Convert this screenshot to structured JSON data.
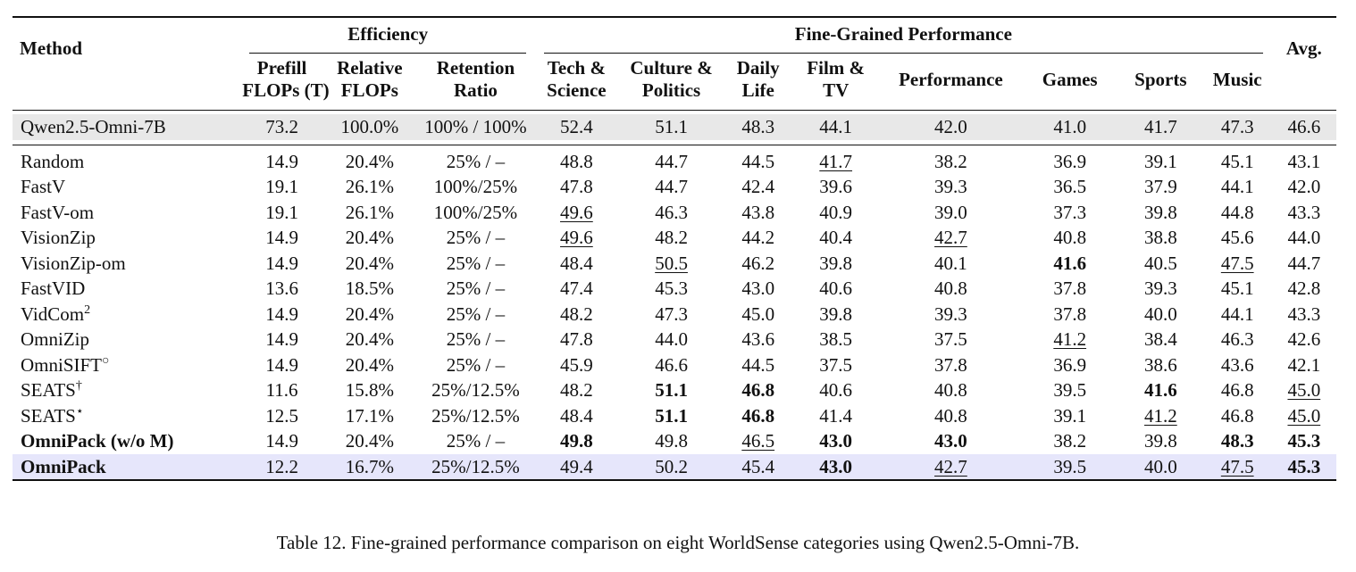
{
  "table": {
    "header": {
      "method": "Method",
      "efficiency": "Efficiency",
      "fine_grained": "Fine-Grained Performance",
      "avg": "Avg.",
      "columns": [
        [
          "Prefill",
          "FLOPs (T)"
        ],
        [
          "Relative",
          "FLOPs"
        ],
        [
          "Retention",
          "Ratio"
        ],
        [
          "Tech &",
          "Science"
        ],
        [
          "Culture &",
          "Politics"
        ],
        [
          "Daily",
          "Life"
        ],
        [
          "Film &",
          "TV"
        ],
        [
          "Performance",
          ""
        ],
        [
          "Games",
          ""
        ],
        [
          "Sports",
          ""
        ],
        [
          "Music",
          ""
        ]
      ]
    },
    "rows": [
      {
        "method": "Qwen2.5-Omni-7B",
        "sup": "",
        "bold_method": false,
        "style": "base",
        "cells": [
          "73.2",
          "100.0%",
          "100% / 100%",
          "52.4",
          "51.1",
          "48.3",
          "44.1",
          "42.0",
          "41.0",
          "41.7",
          "47.3",
          "46.6"
        ],
        "fmt": [
          "",
          "",
          "",
          "",
          "",
          "",
          "",
          "",
          "",
          "",
          "",
          ""
        ]
      },
      {
        "method": "Random",
        "sup": "",
        "bold_method": false,
        "style": "",
        "cells": [
          "14.9",
          "20.4%",
          "25% / –",
          "48.8",
          "44.7",
          "44.5",
          "41.7",
          "38.2",
          "36.9",
          "39.1",
          "45.1",
          "43.1"
        ],
        "fmt": [
          "",
          "",
          "",
          "",
          "",
          "",
          "u",
          "",
          "",
          "",
          "",
          ""
        ]
      },
      {
        "method": "FastV",
        "sup": "",
        "bold_method": false,
        "style": "",
        "cells": [
          "19.1",
          "26.1%",
          "100%/25%",
          "47.8",
          "44.7",
          "42.4",
          "39.6",
          "39.3",
          "36.5",
          "37.9",
          "44.1",
          "42.0"
        ],
        "fmt": [
          "",
          "",
          "",
          "",
          "",
          "",
          "",
          "",
          "",
          "",
          "",
          ""
        ]
      },
      {
        "method": "FastV-om",
        "sup": "",
        "bold_method": false,
        "style": "",
        "cells": [
          "19.1",
          "26.1%",
          "100%/25%",
          "49.6",
          "46.3",
          "43.8",
          "40.9",
          "39.0",
          "37.3",
          "39.8",
          "44.8",
          "43.3"
        ],
        "fmt": [
          "",
          "",
          "",
          "u",
          "",
          "",
          "",
          "",
          "",
          "",
          "",
          ""
        ]
      },
      {
        "method": "VisionZip",
        "sup": "",
        "bold_method": false,
        "style": "",
        "cells": [
          "14.9",
          "20.4%",
          "25% / –",
          "49.6",
          "48.2",
          "44.2",
          "40.4",
          "42.7",
          "40.8",
          "38.8",
          "45.6",
          "44.0"
        ],
        "fmt": [
          "",
          "",
          "",
          "u",
          "",
          "",
          "",
          "u",
          "",
          "",
          "",
          ""
        ]
      },
      {
        "method": "VisionZip-om",
        "sup": "",
        "bold_method": false,
        "style": "",
        "cells": [
          "14.9",
          "20.4%",
          "25% / –",
          "48.4",
          "50.5",
          "46.2",
          "39.8",
          "40.1",
          "41.6",
          "40.5",
          "47.5",
          "44.7"
        ],
        "fmt": [
          "",
          "",
          "",
          "",
          "u",
          "",
          "",
          "",
          "b",
          "",
          "u",
          ""
        ]
      },
      {
        "method": "FastVID",
        "sup": "",
        "bold_method": false,
        "style": "",
        "cells": [
          "13.6",
          "18.5%",
          "25% / –",
          "47.4",
          "45.3",
          "43.0",
          "40.6",
          "40.8",
          "37.8",
          "39.3",
          "45.1",
          "42.8"
        ],
        "fmt": [
          "",
          "",
          "",
          "",
          "",
          "",
          "",
          "",
          "",
          "",
          "",
          ""
        ]
      },
      {
        "method": "VidCom",
        "sup": "2",
        "bold_method": false,
        "style": "",
        "cells": [
          "14.9",
          "20.4%",
          "25% / –",
          "48.2",
          "47.3",
          "45.0",
          "39.8",
          "39.3",
          "37.8",
          "40.0",
          "44.1",
          "43.3"
        ],
        "fmt": [
          "",
          "",
          "",
          "",
          "",
          "",
          "",
          "",
          "",
          "",
          "",
          ""
        ]
      },
      {
        "method": "OmniZip",
        "sup": "",
        "bold_method": false,
        "style": "",
        "cells": [
          "14.9",
          "20.4%",
          "25% / –",
          "47.8",
          "44.0",
          "43.6",
          "38.5",
          "37.5",
          "41.2",
          "38.4",
          "46.3",
          "42.6"
        ],
        "fmt": [
          "",
          "",
          "",
          "",
          "",
          "",
          "",
          "",
          "u",
          "",
          "",
          ""
        ]
      },
      {
        "method": "OmniSIFT",
        "sup": "○",
        "bold_method": false,
        "style": "",
        "cells": [
          "14.9",
          "20.4%",
          "25% / –",
          "45.9",
          "46.6",
          "44.5",
          "37.5",
          "37.8",
          "36.9",
          "38.6",
          "43.6",
          "42.1"
        ],
        "fmt": [
          "",
          "",
          "",
          "",
          "",
          "",
          "",
          "",
          "",
          "",
          "",
          ""
        ]
      },
      {
        "method": "SEATS",
        "sup": "†",
        "bold_method": false,
        "style": "",
        "cells": [
          "11.6",
          "15.8%",
          "25%/12.5%",
          "48.2",
          "51.1",
          "46.8",
          "40.6",
          "40.8",
          "39.5",
          "41.6",
          "46.8",
          "45.0"
        ],
        "fmt": [
          "",
          "",
          "",
          "",
          "b",
          "b",
          "",
          "",
          "",
          "b",
          "",
          "u"
        ]
      },
      {
        "method": "SEATS",
        "sup": "⋆",
        "bold_method": false,
        "style": "",
        "cells": [
          "12.5",
          "17.1%",
          "25%/12.5%",
          "48.4",
          "51.1",
          "46.8",
          "41.4",
          "40.8",
          "39.1",
          "41.2",
          "46.8",
          "45.0"
        ],
        "fmt": [
          "",
          "",
          "",
          "",
          "b",
          "b",
          "",
          "",
          "",
          "u",
          "",
          "u"
        ]
      },
      {
        "method": "OmniPack (w/o M)",
        "sup": "",
        "bold_method": true,
        "style": "",
        "cells": [
          "14.9",
          "20.4%",
          "25% / –",
          "49.8",
          "49.8",
          "46.5",
          "43.0",
          "43.0",
          "38.2",
          "39.8",
          "48.3",
          "45.3"
        ],
        "fmt": [
          "",
          "",
          "",
          "b",
          "",
          "u",
          "b",
          "b",
          "",
          "",
          "b",
          "b"
        ]
      },
      {
        "method": "OmniPack",
        "sup": "",
        "bold_method": true,
        "style": "ours",
        "cells": [
          "12.2",
          "16.7%",
          "25%/12.5%",
          "49.4",
          "50.2",
          "45.4",
          "43.0",
          "42.7",
          "39.5",
          "40.0",
          "47.5",
          "45.3"
        ],
        "fmt": [
          "",
          "",
          "",
          "",
          "",
          "",
          "b",
          "u",
          "",
          "",
          "u",
          "b"
        ]
      }
    ]
  },
  "caption": "Table 12. Fine-grained performance comparison on eight WorldSense categories using Qwen2.5-Omni-7B."
}
